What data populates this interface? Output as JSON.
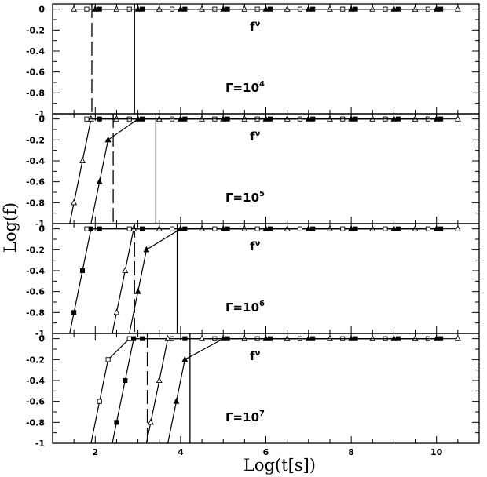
{
  "chart_data": {
    "type": "line",
    "xlabel": "Log(t[s])",
    "ylabel": "Log(f)",
    "xlim": [
      1,
      11
    ],
    "ylim": [
      -1,
      0.05
    ],
    "x_ticks": [
      "2",
      "4",
      "6",
      "8",
      "10"
    ],
    "y_ticks": [
      "0",
      "-0.2",
      "-0.4",
      "-0.6",
      "-0.8",
      "-1"
    ],
    "curve_label": "f",
    "curve_label_sup": "ν",
    "panels": [
      {
        "label": "Γ=10",
        "label_exp": "4",
        "dashed_x": 1.92,
        "solid_x": 2.92,
        "series": [
          {
            "marker": "open-triangle",
            "x": [
              1.5,
              2.5,
              3.5,
              4.5,
              5.5,
              6.5,
              7.5,
              8.5,
              9.5,
              10.5
            ],
            "y": [
              0,
              0,
              0,
              0,
              0,
              0,
              0,
              0,
              0,
              0
            ]
          },
          {
            "marker": "filled-triangle",
            "x": [
              2.0,
              3.0,
              4.0,
              5.0,
              6.0,
              7.0,
              8.0,
              9.0,
              10.0
            ],
            "y": [
              0,
              0,
              0,
              0,
              0,
              0,
              0,
              0,
              0
            ]
          },
          {
            "marker": "open-square",
            "x": [
              1.8,
              2.8,
              3.8,
              4.8,
              5.8,
              6.8,
              7.8,
              8.8,
              9.8
            ],
            "y": [
              0,
              0,
              0,
              0,
              0,
              0,
              0,
              0,
              0
            ]
          },
          {
            "marker": "filled-square",
            "x": [
              2.1,
              3.1,
              4.1,
              5.1,
              6.1,
              7.1,
              8.1,
              9.1,
              10.1
            ],
            "y": [
              0,
              0,
              0,
              0,
              0,
              0,
              0,
              0,
              0
            ]
          }
        ]
      },
      {
        "label": "Γ=10",
        "label_exp": "5",
        "dashed_x": 2.42,
        "solid_x": 3.42,
        "series": [
          {
            "marker": "open-triangle",
            "x": [
              1.5,
              1.7,
              1.9,
              2.5,
              3.5,
              4.5,
              5.5,
              6.5,
              7.5,
              8.5,
              9.5,
              10.5
            ],
            "y": [
              -0.8,
              -0.4,
              0,
              0,
              0,
              0,
              0,
              0,
              0,
              0,
              0,
              0
            ]
          },
          {
            "marker": "filled-triangle",
            "x": [
              2.1,
              2.3,
              3.0,
              4.0,
              5.0,
              6.0,
              7.0,
              8.0,
              9.0,
              10.0
            ],
            "y": [
              -0.6,
              -0.2,
              0,
              0,
              0,
              0,
              0,
              0,
              0,
              0
            ]
          },
          {
            "marker": "open-square",
            "x": [
              1.8,
              2.8,
              3.8,
              4.8,
              5.8,
              6.8,
              7.8,
              8.8,
              9.8
            ],
            "y": [
              0,
              0,
              0,
              0,
              0,
              0,
              0,
              0,
              0
            ]
          },
          {
            "marker": "filled-square",
            "x": [
              2.1,
              3.1,
              4.1,
              5.1,
              6.1,
              7.1,
              8.1,
              9.1,
              10.1
            ],
            "y": [
              0,
              0,
              0,
              0,
              0,
              0,
              0,
              0,
              0
            ]
          }
        ]
      },
      {
        "label": "Γ=10",
        "label_exp": "6",
        "dashed_x": 2.92,
        "solid_x": 3.92,
        "series": [
          {
            "marker": "filled-square",
            "x": [
              1.5,
              1.7,
              1.9,
              2.1,
              3.1,
              4.1,
              5.1,
              6.1,
              7.1,
              8.1,
              9.1,
              10.1
            ],
            "y": [
              -0.8,
              -0.4,
              0,
              0,
              0,
              0,
              0,
              0,
              0,
              0,
              0,
              0
            ]
          },
          {
            "marker": "open-triangle",
            "x": [
              2.5,
              2.7,
              2.9,
              3.5,
              4.5,
              5.5,
              6.5,
              7.5,
              8.5,
              9.5,
              10.5
            ],
            "y": [
              -0.8,
              -0.4,
              0,
              0,
              0,
              0,
              0,
              0,
              0,
              0,
              0
            ]
          },
          {
            "marker": "filled-triangle",
            "x": [
              3.0,
              3.2,
              4.0,
              5.0,
              6.0,
              7.0,
              8.0,
              9.0,
              10.0
            ],
            "y": [
              -0.6,
              -0.2,
              0,
              0,
              0,
              0,
              0,
              0,
              0
            ]
          },
          {
            "marker": "open-square",
            "x": [
              1.8,
              2.8,
              3.8,
              4.8,
              5.8,
              6.8,
              7.8,
              8.8,
              9.8
            ],
            "y": [
              0,
              0,
              0,
              0,
              0,
              0,
              0,
              0,
              0
            ]
          }
        ]
      },
      {
        "label": "Γ=10",
        "label_exp": "7",
        "dashed_x": 3.22,
        "solid_x": 4.22,
        "series": [
          {
            "marker": "open-square",
            "x": [
              2.1,
              2.3,
              2.8,
              3.8,
              4.8,
              5.8,
              6.8,
              7.8,
              8.8,
              9.8
            ],
            "y": [
              -0.6,
              -0.2,
              0,
              0,
              0,
              0,
              0,
              0,
              0,
              0
            ]
          },
          {
            "marker": "filled-square",
            "x": [
              2.5,
              2.7,
              2.9,
              3.1,
              4.1,
              5.1,
              6.1,
              7.1,
              8.1,
              9.1,
              10.1
            ],
            "y": [
              -0.8,
              -0.4,
              0,
              0,
              0,
              0,
              0,
              0,
              0,
              0,
              0
            ]
          },
          {
            "marker": "open-triangle",
            "x": [
              3.3,
              3.5,
              3.7,
              4.5,
              5.5,
              6.5,
              7.5,
              8.5,
              9.5,
              10.5
            ],
            "y": [
              -0.8,
              -0.4,
              0,
              0,
              0,
              0,
              0,
              0,
              0,
              0
            ]
          },
          {
            "marker": "filled-triangle",
            "x": [
              3.9,
              4.1,
              5.0,
              6.0,
              7.0,
              8.0,
              9.0,
              10.0
            ],
            "y": [
              -0.6,
              -0.2,
              0,
              0,
              0,
              0,
              0,
              0
            ]
          }
        ]
      }
    ]
  }
}
